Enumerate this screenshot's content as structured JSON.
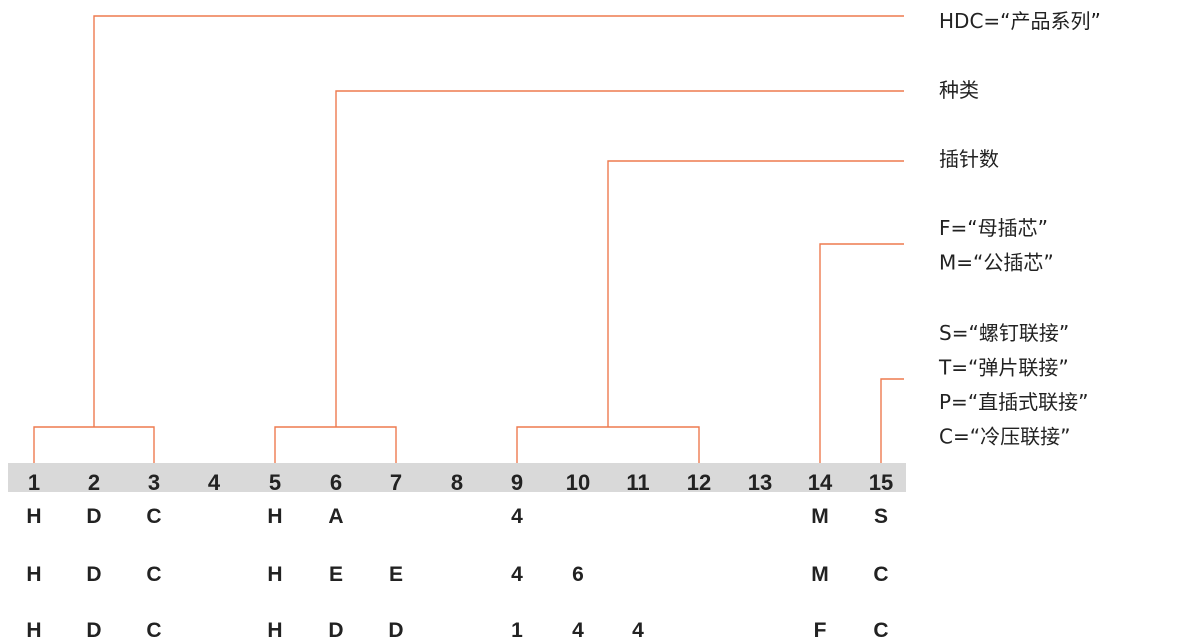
{
  "colors": {
    "connector": "#ee7a4f",
    "band": "#d9d9d9",
    "text": "#222222"
  },
  "positions": [
    "1",
    "2",
    "3",
    "4",
    "5",
    "6",
    "7",
    "8",
    "9",
    "10",
    "11",
    "12",
    "13",
    "14",
    "15"
  ],
  "legend": [
    {
      "id": "product-series",
      "lines": [
        "HDC=“产品系列”"
      ],
      "spans": [
        1,
        3
      ]
    },
    {
      "id": "type",
      "lines": [
        "种类"
      ],
      "spans": [
        5,
        7
      ]
    },
    {
      "id": "pin-count",
      "lines": [
        "插针数"
      ],
      "spans": [
        9,
        12
      ]
    },
    {
      "id": "insert-gender",
      "lines": [
        "F=“母插芯”",
        "M=“公插芯”"
      ],
      "spans": [
        14
      ]
    },
    {
      "id": "connection-type",
      "lines": [
        "S=“螺钉联接”",
        "T=“弹片联接”",
        "P=“直插式联接”",
        "C=“冷压联接”"
      ],
      "spans": [
        15
      ]
    }
  ],
  "examples": [
    {
      "codes": [
        "H",
        "D",
        "C",
        "",
        "H",
        "A",
        "",
        "",
        "4",
        "",
        "",
        "",
        "",
        "M",
        "S"
      ]
    },
    {
      "codes": [
        "H",
        "D",
        "C",
        "",
        "H",
        "E",
        "E",
        "",
        "4",
        "6",
        "",
        "",
        "",
        "M",
        "C"
      ]
    },
    {
      "codes": [
        "H",
        "D",
        "C",
        "",
        "H",
        "D",
        "D",
        "",
        "1",
        "4",
        "4",
        "",
        "",
        "F",
        "C"
      ]
    }
  ]
}
